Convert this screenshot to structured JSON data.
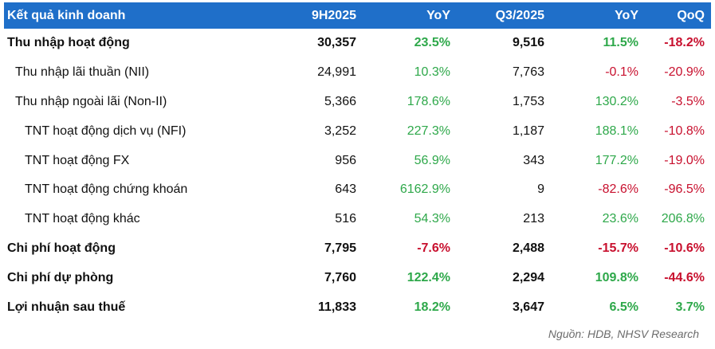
{
  "table": {
    "headers": [
      "Kết quả kinh doanh",
      "9H2025",
      "YoY",
      "Q3/2025",
      "YoY",
      "QoQ"
    ],
    "rows": [
      {
        "label": "Thu nhập hoạt động",
        "level": 0,
        "h9": "30,357",
        "yoy9": "23.5%",
        "q3": "9,516",
        "yoyq3": "11.5%",
        "qoq": "-18.2%"
      },
      {
        "label": "Thu nhập lãi thuần (NII)",
        "level": 1,
        "h9": "24,991",
        "yoy9": "10.3%",
        "q3": "7,763",
        "yoyq3": "-0.1%",
        "qoq": "-20.9%"
      },
      {
        "label": "Thu nhập ngoài lãi (Non-II)",
        "level": 1,
        "h9": "5,366",
        "yoy9": "178.6%",
        "q3": "1,753",
        "yoyq3": "130.2%",
        "qoq": "-3.5%"
      },
      {
        "label": "TNT hoạt động dịch vụ (NFI)",
        "level": 2,
        "h9": "3,252",
        "yoy9": "227.3%",
        "q3": "1,187",
        "yoyq3": "188.1%",
        "qoq": "-10.8%"
      },
      {
        "label": "TNT hoạt động FX",
        "level": 2,
        "h9": "956",
        "yoy9": "56.9%",
        "q3": "343",
        "yoyq3": "177.2%",
        "qoq": "-19.0%"
      },
      {
        "label": "TNT hoạt động chứng khoán",
        "level": 2,
        "h9": "643",
        "yoy9": "6162.9%",
        "q3": "9",
        "yoyq3": "-82.6%",
        "qoq": "-96.5%"
      },
      {
        "label": "TNT hoạt động khác",
        "level": 2,
        "h9": "516",
        "yoy9": "54.3%",
        "q3": "213",
        "yoyq3": "23.6%",
        "qoq": "206.8%"
      },
      {
        "label": "Chi phí hoạt động",
        "level": 0,
        "h9": "7,795",
        "yoy9": "-7.6%",
        "q3": "2,488",
        "yoyq3": "-15.7%",
        "qoq": "-10.6%"
      },
      {
        "label": "Chi phí dự phòng",
        "level": 0,
        "h9": "7,760",
        "yoy9": "122.4%",
        "q3": "2,294",
        "yoyq3": "109.8%",
        "qoq": "-44.6%"
      },
      {
        "label": "Lợi nhuận sau thuế",
        "level": 0,
        "h9": "11,833",
        "yoy9": "18.2%",
        "q3": "3,647",
        "yoyq3": "6.5%",
        "qoq": "3.7%"
      }
    ]
  },
  "colors": {
    "header_bg": "#1f6fc9",
    "positive": "#2ea84a",
    "negative": "#c8102e"
  },
  "source": "Nguồn: HDB, NHSV Research"
}
